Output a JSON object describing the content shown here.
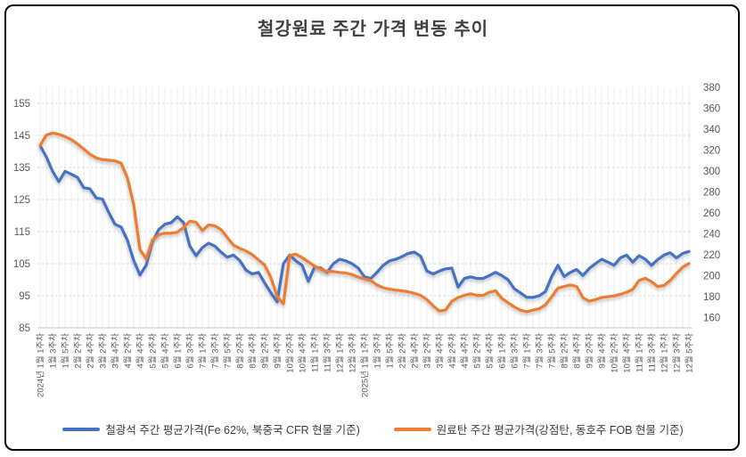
{
  "title": "철강원료 주간 가격 변동 추이",
  "legend": [
    {
      "label": "철광석 주간 평균가격(Fe 62%, 북중국 CFR 현물 기준)",
      "color": "#4472C4"
    },
    {
      "label": "원료탄 주간 평균가격(강점탄, 동호주 FOB 현물 기준)",
      "color": "#ED7D31"
    }
  ],
  "colors": {
    "grid": "#d9d9d9",
    "weekly_grid": "#ececec",
    "axis_text": "#595959",
    "title_text": "#404040",
    "border": "#000000"
  },
  "chart_data": {
    "type": "line",
    "title": "철강원료 주간 가격 변동 추이",
    "x_axis": {
      "unit": "week",
      "label_every_n_points": 2,
      "tick_labels": [
        "2024년 1월 1주차",
        "1월 3주차",
        "1월 5주차",
        "2월 2주차",
        "2월 4주차",
        "3월 2주차",
        "3월 4주차",
        "4월 2주차",
        "4월 4주차",
        "5월 2주차",
        "5월 4주차",
        "6월 1주차",
        "6월 3주차",
        "7월 1주차",
        "7월 3주차",
        "7월 5주차",
        "8월 2주차",
        "8월 4주차",
        "9월 2주차",
        "9월 4주차",
        "10월 2주차",
        "10월 4주차",
        "11월 1주차",
        "11월 3주차",
        "12월 1주차",
        "12월 3주차",
        "2025년 1월 1주차",
        "1월 3주차",
        "1월 5주차",
        "2월 2주차",
        "2월 4주차",
        "3월 2주차",
        "3월 4주차",
        "4월 2주차",
        "4월 4주차",
        "5월 2주차",
        "5월 4주차",
        "6월 1주차",
        "6월 3주차",
        "7월 1주차",
        "7월 3주차",
        "7월 5주차",
        "8월 2주차",
        "8월 4주차",
        "9월 2주차",
        "9월 4주차",
        "10월 2주차",
        "10월 4주차",
        "11월 1주차",
        "11월 3주차",
        "12월 1주차",
        "12월 3주차",
        "12월 5주차"
      ]
    },
    "left_axis": {
      "min": 85,
      "max": 160,
      "ticks": [
        85,
        95,
        105,
        115,
        125,
        135,
        145,
        155
      ]
    },
    "right_axis": {
      "min": 150,
      "max": 380,
      "ticks": [
        160,
        180,
        200,
        220,
        240,
        260,
        280,
        300,
        320,
        340,
        360,
        380
      ]
    },
    "grid": {
      "horizontal": "dashed",
      "vertical": "weekly-light"
    },
    "legend_position": "bottom",
    "series": [
      {
        "name": "철광석 주간 평균가격(Fe 62%, 북중국 CFR 현물 기준)",
        "axis": "left",
        "color": "#4472C4",
        "values": [
          141.8,
          138.3,
          133.8,
          130.6,
          133.8,
          132.9,
          131.9,
          128.7,
          128.3,
          125.5,
          125.1,
          121.0,
          117.3,
          116.4,
          112.3,
          106.0,
          101.5,
          104.5,
          111.8,
          115.6,
          117.3,
          117.8,
          119.6,
          117.8,
          110.5,
          107.5,
          110.0,
          111.4,
          110.5,
          108.6,
          107.0,
          107.7,
          106.0,
          103.0,
          101.8,
          102.3,
          99.0,
          95.9,
          93.1,
          105.0,
          107.7,
          105.9,
          104.5,
          99.5,
          104.0,
          103.6,
          102.3,
          105.0,
          106.4,
          105.9,
          105.0,
          103.6,
          100.9,
          100.4,
          102.3,
          104.5,
          105.9,
          106.4,
          107.2,
          108.2,
          108.6,
          107.3,
          102.7,
          101.8,
          102.7,
          103.4,
          103.6,
          97.7,
          100.4,
          100.9,
          100.4,
          100.4,
          101.3,
          102.3,
          101.3,
          100.0,
          97.2,
          95.9,
          94.5,
          94.5,
          95.0,
          96.3,
          101.0,
          104.5,
          101.0,
          102.3,
          103.2,
          101.3,
          103.5,
          105.0,
          106.4,
          105.5,
          104.5,
          106.8,
          107.7,
          105.5,
          107.5,
          106.4,
          104.5,
          106.3,
          107.7,
          108.4,
          106.8,
          108.2,
          108.8
        ]
      },
      {
        "name": "원료탄 주간 평균가격(강점탄, 동호주 FOB 현물 기준)",
        "axis": "right",
        "color": "#ED7D31",
        "values": [
          324.4,
          334.3,
          336.3,
          335.1,
          332.9,
          330.0,
          325.8,
          321.0,
          315.9,
          312.5,
          310.8,
          310.2,
          309.6,
          307.4,
          293.2,
          268.0,
          225.0,
          216.0,
          234.0,
          239.0,
          240.5,
          240.5,
          241.5,
          246.0,
          252.0,
          251.0,
          243.0,
          248.5,
          247.5,
          244.0,
          236.5,
          229.0,
          226.0,
          223.5,
          220.0,
          215.0,
          210.0,
          198.0,
          180.0,
          173.0,
          219.0,
          220.5,
          217.0,
          213.0,
          209.0,
          206.0,
          204.0,
          203.8,
          203.0,
          202.4,
          201.0,
          198.5,
          196.8,
          195.3,
          191.0,
          188.3,
          187.0,
          186.0,
          185.4,
          184.5,
          183.0,
          181.0,
          177.0,
          171.0,
          166.0,
          167.0,
          175.5,
          179.0,
          181.1,
          182.5,
          181.0,
          181.0,
          184.0,
          185.4,
          178.3,
          174.0,
          170.0,
          166.9,
          165.4,
          166.9,
          168.3,
          172.0,
          179.7,
          188.0,
          189.6,
          191.0,
          189.6,
          179.0,
          175.5,
          177.0,
          179.0,
          179.7,
          180.5,
          182.0,
          184.0,
          186.8,
          195.3,
          197.5,
          194.0,
          189.5,
          190.5,
          195.3,
          202.0,
          208.0,
          211.5
        ]
      }
    ]
  }
}
